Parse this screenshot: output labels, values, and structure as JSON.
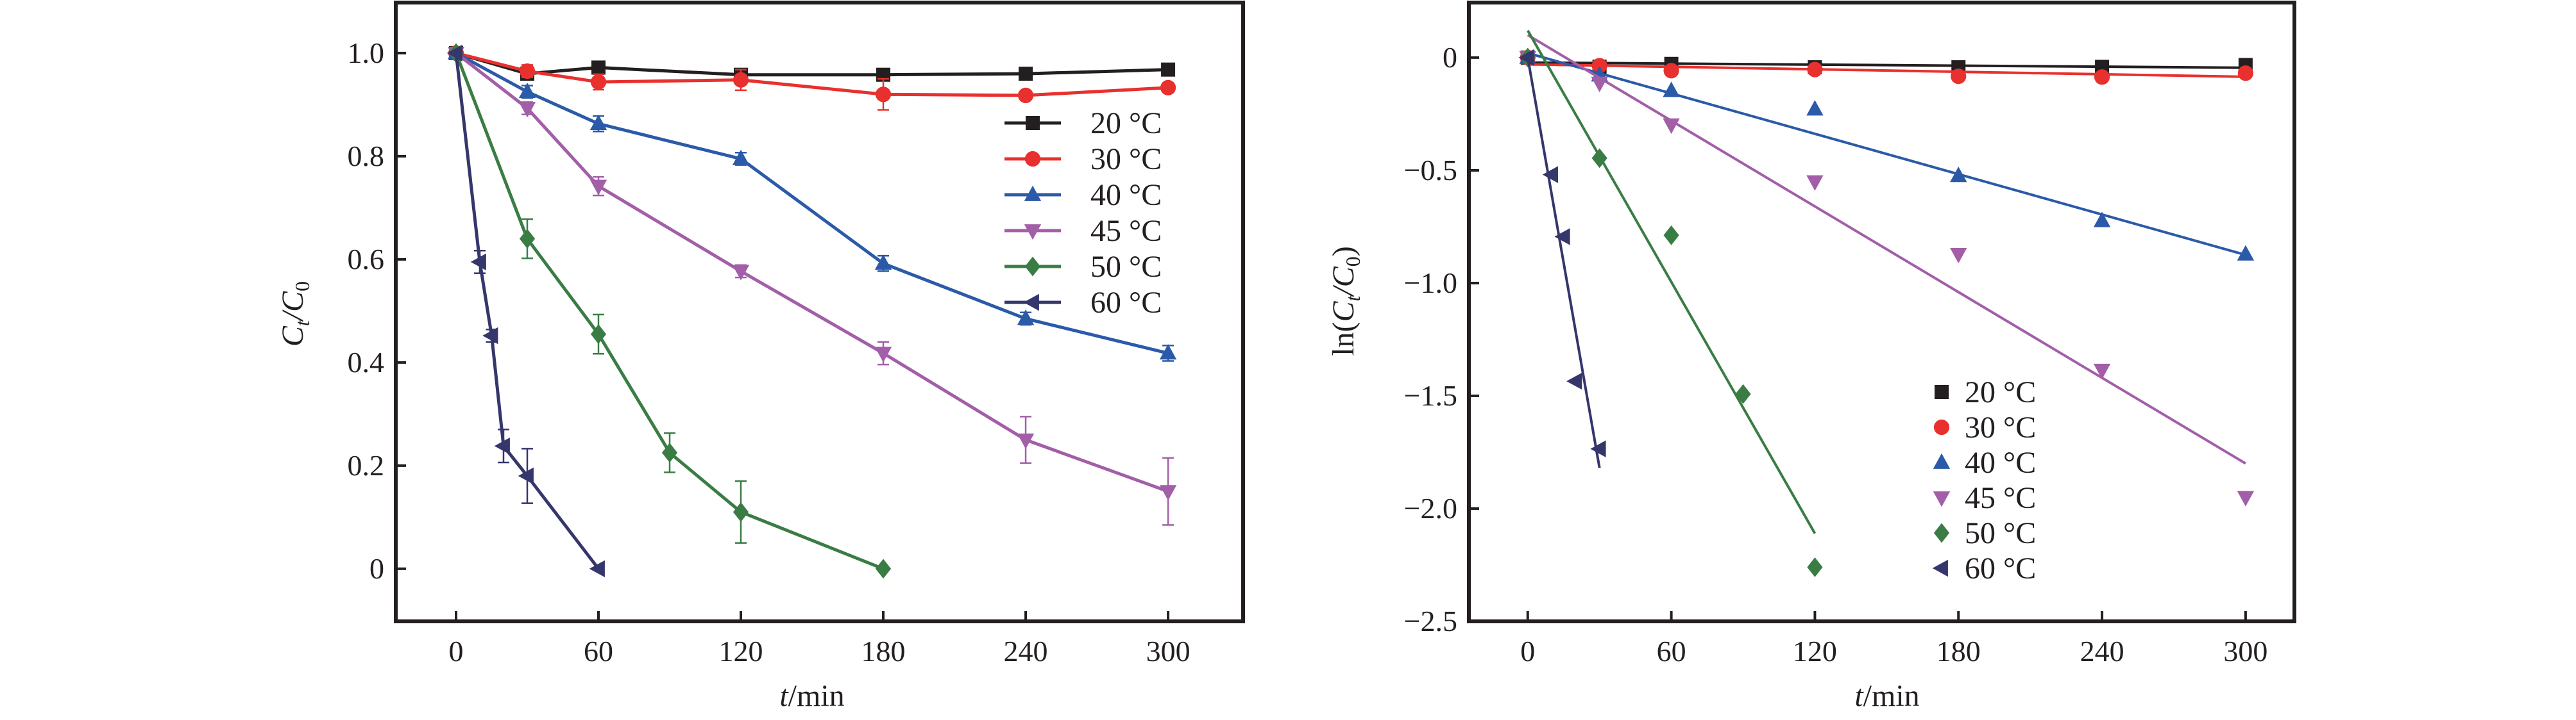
{
  "chart_data": [
    {
      "type": "line",
      "id": "left",
      "xlabel_italic": "t",
      "xlabel_rest": "/min",
      "ylabel_main": "C",
      "ylabel_sub1": "t",
      "ylabel_sep": "/C",
      "ylabel_sub2": "0",
      "xlim": [
        -25.4,
        331.6
      ],
      "ylim": [
        -0.102,
        1.098
      ],
      "xticks": [
        0,
        60,
        120,
        180,
        240,
        300
      ],
      "xtick_labels": [
        "0",
        "60",
        "120",
        "180",
        "240",
        "300"
      ],
      "yticks": [
        0,
        0.2,
        0.4,
        0.6,
        0.8,
        1.0
      ],
      "ytick_labels": [
        "0",
        "0.2",
        "0.4",
        "0.6",
        "0.8",
        "1.0"
      ],
      "legend_position": "upper-right",
      "series": [
        {
          "name": "20 °C",
          "color": "#231f20",
          "marker": "square",
          "x": [
            0,
            30,
            60,
            120,
            180,
            240,
            300
          ],
          "y": [
            1.0,
            0.96,
            0.972,
            0.958,
            0.958,
            0.96,
            0.968
          ],
          "err": [
            0,
            0.01,
            0.005,
            0.008,
            0.006,
            0.005,
            0.01
          ]
        },
        {
          "name": "30 °C",
          "color": "#e8302e",
          "marker": "circle",
          "x": [
            0,
            30,
            60,
            120,
            180,
            240,
            300
          ],
          "y": [
            1.0,
            0.965,
            0.944,
            0.948,
            0.92,
            0.918,
            0.933
          ],
          "err": [
            0,
            0.012,
            0.015,
            0.02,
            0.03,
            0.005,
            0.005
          ]
        },
        {
          "name": "40 °C",
          "color": "#2b5aa8",
          "marker": "triangle-up",
          "x": [
            0,
            30,
            60,
            120,
            180,
            240,
            300
          ],
          "y": [
            1.0,
            0.925,
            0.863,
            0.795,
            0.592,
            0.485,
            0.418
          ],
          "err": [
            0,
            0.012,
            0.015,
            0.012,
            0.015,
            0.012,
            0.015
          ]
        },
        {
          "name": "45 °C",
          "color": "#a35ea8",
          "marker": "triangle-down",
          "x": [
            0,
            30,
            60,
            120,
            180,
            240,
            300
          ],
          "y": [
            1.0,
            0.893,
            0.742,
            0.577,
            0.418,
            0.25,
            0.15
          ],
          "err": [
            0,
            0.012,
            0.018,
            0.012,
            0.022,
            0.045,
            0.065
          ]
        },
        {
          "name": "50 °C",
          "color": "#3a7d44",
          "marker": "diamond",
          "x": [
            0,
            30,
            60,
            90,
            120,
            180
          ],
          "y": [
            1.0,
            0.64,
            0.455,
            0.225,
            0.11,
            0.0
          ],
          "err": [
            0,
            0.038,
            0.038,
            0.038,
            0.06,
            0
          ]
        },
        {
          "name": "60 °C",
          "color": "#35366b",
          "marker": "triangle-left",
          "x": [
            0,
            10,
            15,
            20,
            30,
            60
          ],
          "y": [
            1.0,
            0.595,
            0.452,
            0.238,
            0.18,
            0.0
          ],
          "err": [
            0,
            0.022,
            0.012,
            0.032,
            0.053,
            0
          ]
        }
      ]
    },
    {
      "type": "scatter",
      "id": "right",
      "xlabel_italic": "t",
      "xlabel_rest": "/min",
      "ylabel_pre": "ln(",
      "ylabel_main": "C",
      "ylabel_sub1": "t",
      "ylabel_sep": "/C",
      "ylabel_sub2": "0",
      "ylabel_post": ")",
      "xlim": [
        -24.6,
        320.4
      ],
      "ylim": [
        -2.5,
        0.244
      ],
      "xticks": [
        0,
        60,
        120,
        180,
        240,
        300
      ],
      "xtick_labels": [
        "0",
        "60",
        "120",
        "180",
        "240",
        "300"
      ],
      "yticks": [
        0,
        -0.5,
        -1.0,
        -1.5,
        -2.0,
        -2.5
      ],
      "ytick_labels": [
        "0",
        "−0.5",
        "−1.0",
        "−1.5",
        "−2.0",
        "−2.5"
      ],
      "legend_position": "lower-center",
      "series": [
        {
          "name": "20 °C",
          "color": "#231f20",
          "marker": "square",
          "x": [
            0,
            30,
            60,
            120,
            180,
            240,
            300
          ],
          "y": [
            0,
            -0.04,
            -0.028,
            -0.043,
            -0.043,
            -0.041,
            -0.033
          ],
          "fit": {
            "x": [
              0,
              300
            ],
            "y": [
              -0.022,
              -0.045
            ]
          }
        },
        {
          "name": "30 °C",
          "color": "#e8302e",
          "marker": "circle",
          "x": [
            0,
            30,
            60,
            120,
            180,
            240,
            300
          ],
          "y": [
            0,
            -0.036,
            -0.058,
            -0.053,
            -0.083,
            -0.086,
            -0.069
          ],
          "fit": {
            "x": [
              0,
              300
            ],
            "y": [
              -0.03,
              -0.085
            ]
          }
        },
        {
          "name": "40 °C",
          "color": "#2b5aa8",
          "marker": "triangle-up",
          "x": [
            0,
            30,
            60,
            120,
            180,
            240,
            300
          ],
          "y": [
            0,
            -0.078,
            -0.147,
            -0.229,
            -0.524,
            -0.724,
            -0.872
          ],
          "fit": {
            "x": [
              0,
              300
            ],
            "y": [
              0.02,
              -0.875
            ]
          }
        },
        {
          "name": "45 °C",
          "color": "#a35ea8",
          "marker": "triangle-down",
          "x": [
            0,
            30,
            60,
            120,
            180,
            240,
            300
          ],
          "y": [
            0,
            -0.113,
            -0.298,
            -0.55,
            -0.872,
            -1.386,
            -1.95
          ],
          "fit": {
            "x": [
              0,
              300
            ],
            "y": [
              0.1,
              -1.8
            ]
          }
        },
        {
          "name": "50 °C",
          "color": "#3a7d44",
          "marker": "diamond",
          "x": [
            0,
            30,
            60,
            90,
            120
          ],
          "y": [
            0,
            -0.446,
            -0.788,
            -1.492,
            -2.26
          ],
          "fit": {
            "x": [
              0,
              120
            ],
            "y": [
              0.12,
              -2.11
            ]
          }
        },
        {
          "name": "60 °C",
          "color": "#35366b",
          "marker": "triangle-left",
          "x": [
            0,
            10,
            15,
            20,
            30
          ],
          "y": [
            0,
            -0.519,
            -0.794,
            -1.435,
            -1.735
          ],
          "fit": {
            "x": [
              0,
              30
            ],
            "y": [
              0.0,
              -1.82
            ]
          }
        }
      ]
    }
  ]
}
